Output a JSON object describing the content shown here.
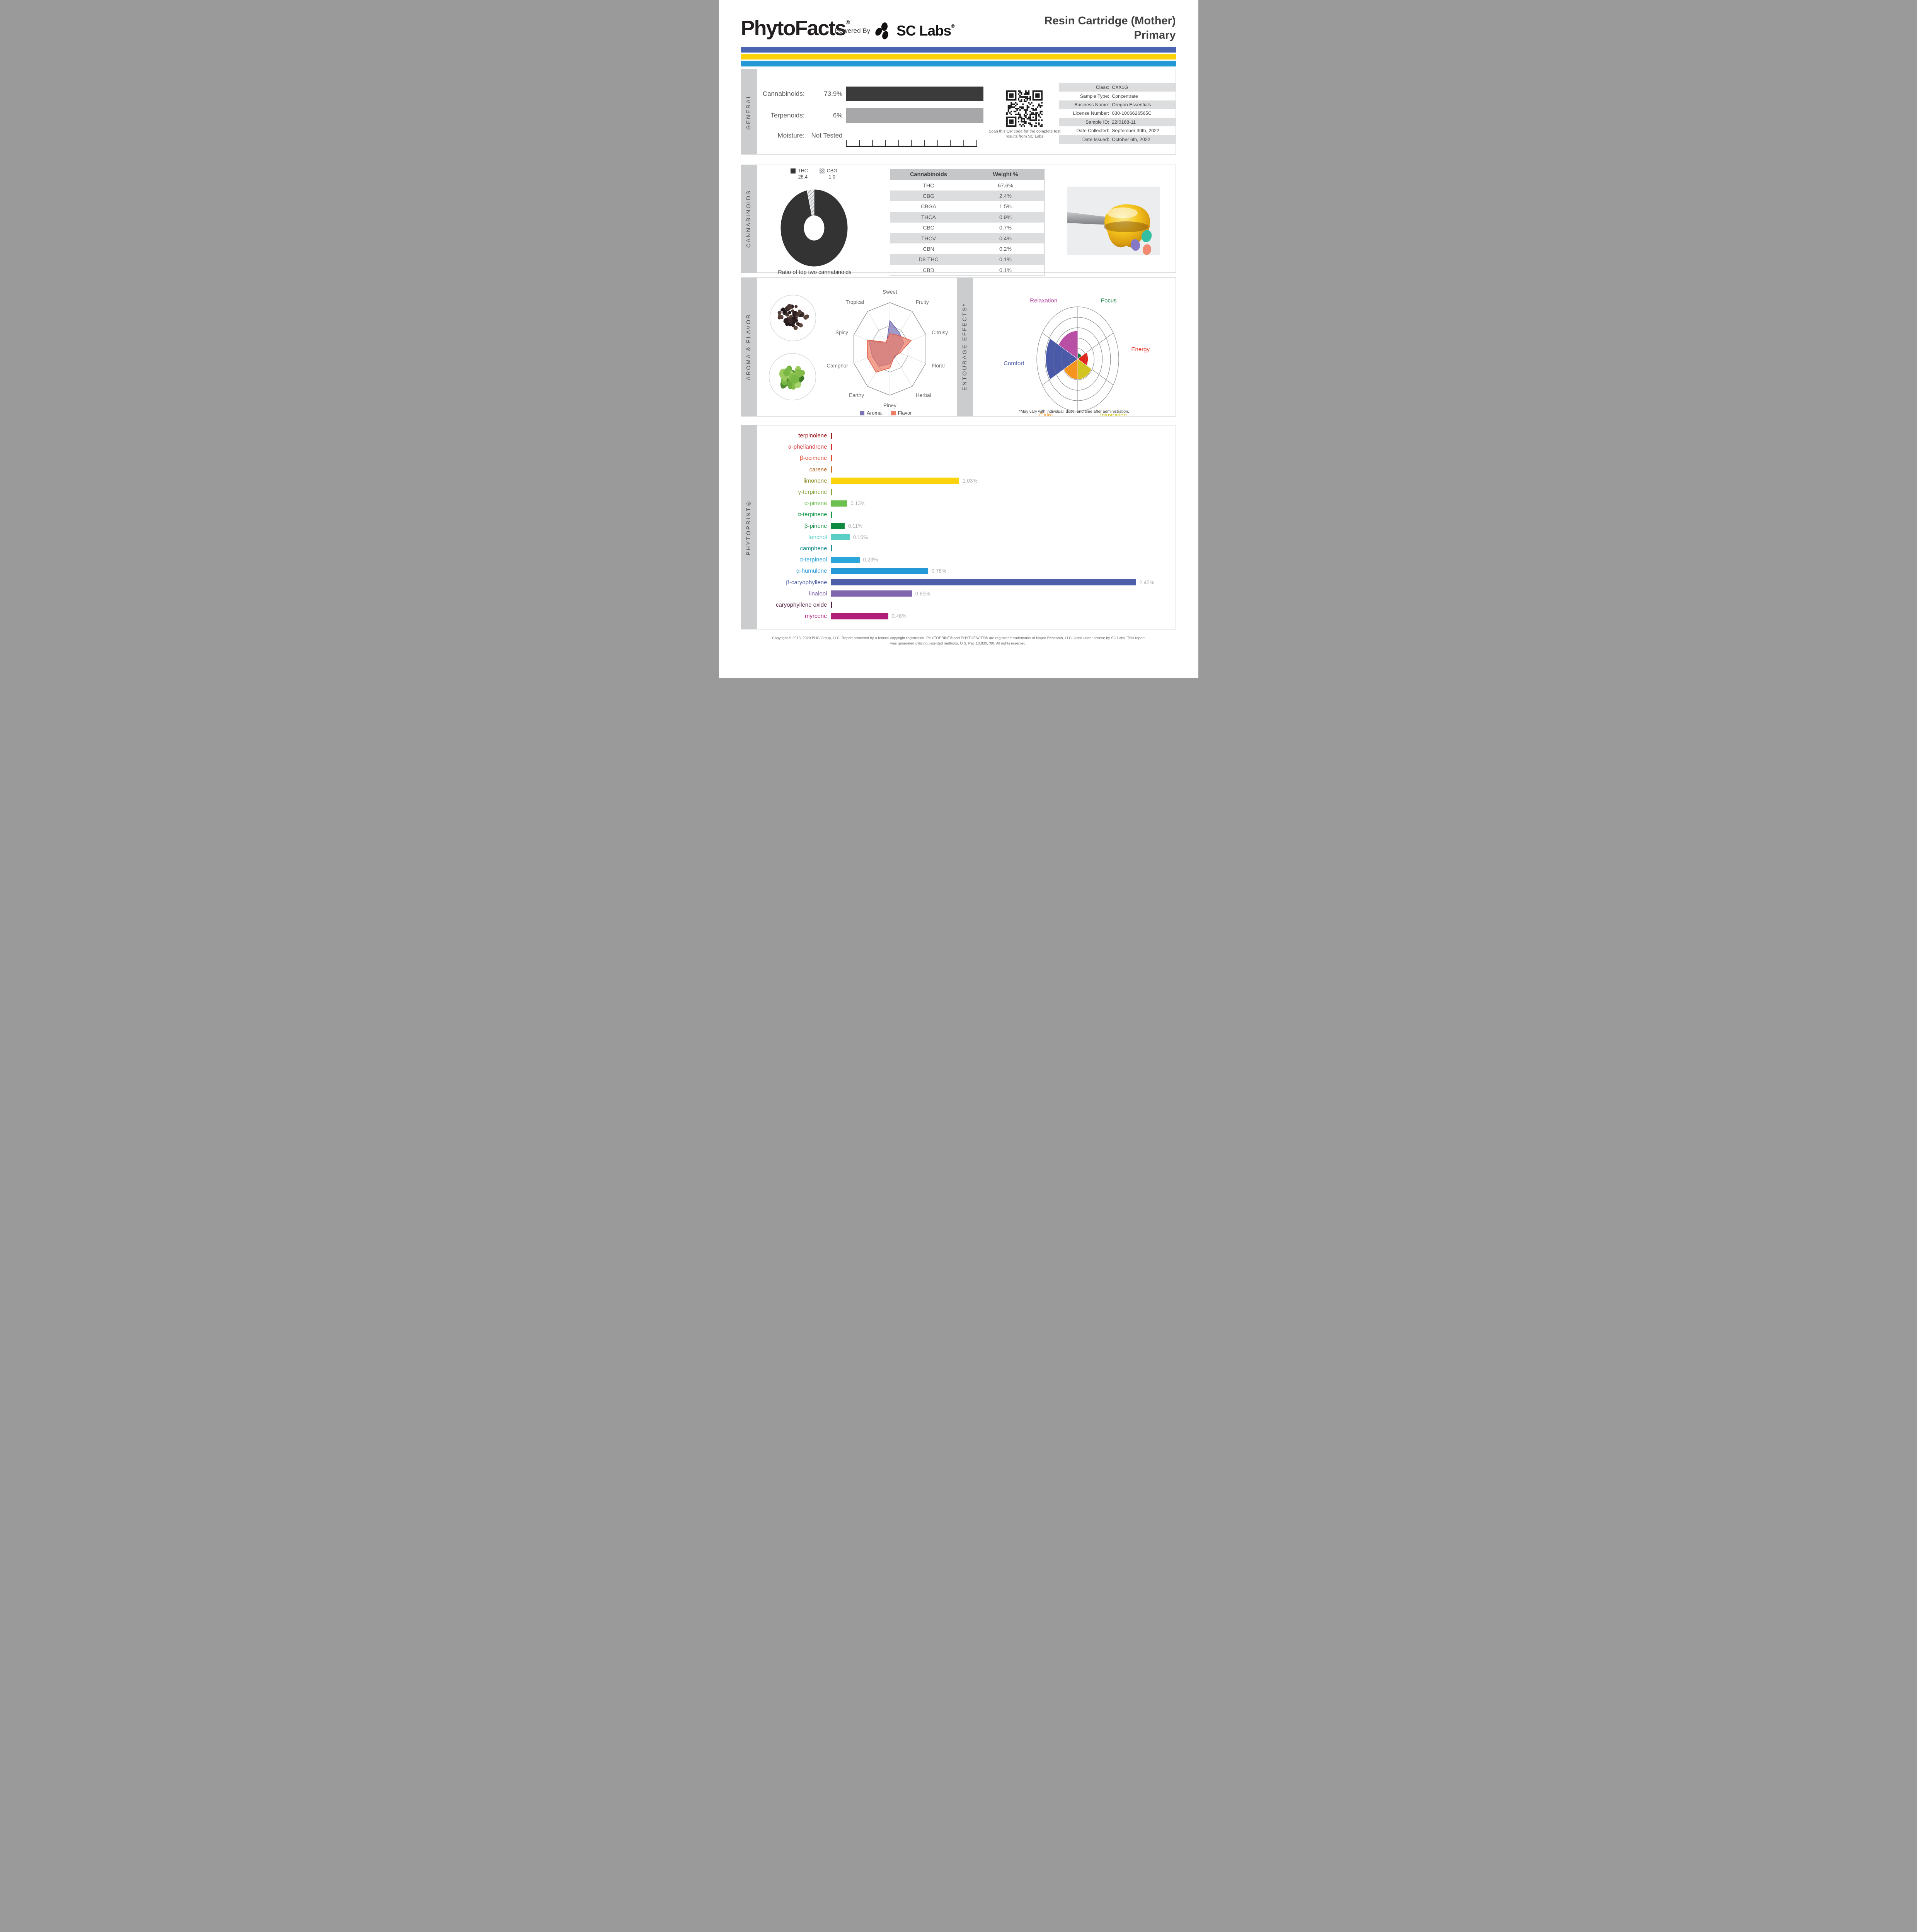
{
  "header": {
    "brand": "PhytoFacts",
    "brand_reg": "®",
    "powered_by": "Powered By",
    "lab": "SC Labs",
    "lab_reg": "®",
    "title_line1": "Resin Cartridge (Mother)",
    "title_line2": "Primary"
  },
  "colors": {
    "divider_blue": "#4a66b0",
    "divider_yellow": "#fcd20a",
    "divider_cyan": "#2499d4",
    "sidebar_gray": "#cbcccd",
    "table_stripe": "#dcddde",
    "table_header": "#c6c7c9",
    "value_gray": "#a7a9ac",
    "cannabinoids_bar": "#3b3b3c",
    "terpenoids_bar": "#a7a7a9"
  },
  "general": {
    "section_label": "GENERAL",
    "cannabinoids_label": "Cannabinoids:",
    "cannabinoids_value": "73.9%",
    "terpenoids_label": "Terpenoids:",
    "terpenoids_value": "6%",
    "moisture_label": "Moisture:",
    "moisture_value": "Not Tested",
    "qr_caption": "Scan this QR code for the complete test results from SC Labs",
    "info": [
      {
        "label": "Class:",
        "value": "CXX1G"
      },
      {
        "label": "Sample Type:",
        "value": "Concentrate"
      },
      {
        "label": "Business Name:",
        "value": "Oregon Essentials"
      },
      {
        "label": "License Number:",
        "value": "030-1006626565C"
      },
      {
        "label": "Sample ID:",
        "value": "22I0168-11"
      },
      {
        "label": "Date Collected:",
        "value": "September 30th, 2022"
      },
      {
        "label": "Date Issued:",
        "value": "October 6th, 2022"
      }
    ]
  },
  "cannabinoids": {
    "section_label": "CANNABINOIDS",
    "caption": "Ratio of top two cannabinoids",
    "table": {
      "headers": [
        "Cannabinoids",
        "Weight %"
      ],
      "rows": [
        [
          "THC",
          "67.6%"
        ],
        [
          "CBG",
          "2.4%"
        ],
        [
          "CBGA",
          "1.5%"
        ],
        [
          "THCA",
          "0.9%"
        ],
        [
          "CBC",
          "0.7%"
        ],
        [
          "THCV",
          "0.4%"
        ],
        [
          "CBN",
          "0.2%"
        ],
        [
          "D8-THC",
          "0.1%"
        ],
        [
          "CBD",
          "0.1%"
        ]
      ]
    }
  },
  "aroma": {
    "section_label": "AROMA & FLAVOR"
  },
  "entourage": {
    "section_label": "ENTOURAGE EFFECTS*",
    "note": "*May vary with individual, dose, and time after administration."
  },
  "phytoprint": {
    "section_label": "PHYTOPRINT®"
  },
  "footer": {
    "line1": "Copyright © 2013, 2020 BHC Group, LLC. Report protected by a federal copyright registration. PHYTOPRINT® and PHYTOFACTS® are registered trademarks of Napro Research, LLC. Used under license by SC Labs. This report",
    "line2": "was generated utilizing patented methods. U.S. Pat. 10,830,780. All rights reserved."
  },
  "chart_data": [
    {
      "id": "cannabinoid_ratio_donut",
      "type": "pie",
      "title": "Ratio of top two cannabinoids",
      "slices": [
        {
          "label": "THC",
          "value": 28.4,
          "color": "#333333"
        },
        {
          "label": "CBG",
          "value": 1.0,
          "color": "hatch"
        }
      ],
      "legend_position": "top"
    },
    {
      "id": "aroma_flavor_radar",
      "type": "radar",
      "categories": [
        "Sweet",
        "Fruity",
        "Citrusy",
        "Floral",
        "Herbal",
        "Piney",
        "Earthy",
        "Camphor",
        "Spicy",
        "Tropical"
      ],
      "scale_max": 1.0,
      "rings": [
        0.5,
        1.0
      ],
      "series": [
        {
          "name": "Aroma",
          "color": "#7b75b5",
          "stroke": "#6a64ab",
          "values": [
            0.61,
            0.43,
            0.39,
            0.24,
            0.22,
            0.32,
            0.47,
            0.49,
            0.59,
            0.15
          ]
        },
        {
          "name": "Flavor",
          "color": "#ee7d66",
          "stroke": "#e25a43",
          "values": [
            0.33,
            0.36,
            0.59,
            0.28,
            0.2,
            0.41,
            0.62,
            0.62,
            0.62,
            0.18
          ]
        }
      ]
    },
    {
      "id": "entourage_effects_polar",
      "type": "polar-area",
      "categories": [
        "Focus",
        "Energy",
        "Inspiration",
        "Calm",
        "Comfort",
        "Relaxation"
      ],
      "values": [
        0.11,
        0.25,
        0.39,
        0.39,
        0.78,
        0.54
      ],
      "colors": [
        "#108040",
        "#e1251b",
        "#d3c422",
        "#f7941e",
        "#4a5aa8",
        "#b94fa5"
      ],
      "rings": 5,
      "note": "*May vary with individual, dose, and time after administration."
    },
    {
      "id": "phytoprint_terpenes",
      "type": "bar",
      "unit": "%",
      "xlim": [
        0,
        2.6
      ],
      "items": [
        {
          "label": "terpinolene",
          "value": 0,
          "display": "",
          "color": "#9a1c20"
        },
        {
          "label": "α-phellandrene",
          "value": 0,
          "display": "",
          "color": "#d7282e"
        },
        {
          "label": "β-ocimene",
          "value": 0,
          "display": "",
          "color": "#e0492b"
        },
        {
          "label": "carene",
          "value": 0,
          "display": "",
          "color": "#bd6b28"
        },
        {
          "label": "limonene",
          "value": 1.03,
          "display": "1.03%",
          "color": "#8e8d26",
          "bar_color": "#fcd40e"
        },
        {
          "label": "γ-terpinene",
          "value": 0,
          "display": "",
          "color": "#85a23a"
        },
        {
          "label": "α-pinene",
          "value": 0.13,
          "display": "0.13%",
          "color": "#6cc04e"
        },
        {
          "label": "α-terpinene",
          "value": 0,
          "display": "",
          "color": "#16984c"
        },
        {
          "label": "β-pinene",
          "value": 0.11,
          "display": "0.11%",
          "color": "#0d8a40"
        },
        {
          "label": "fenchol",
          "value": 0.15,
          "display": "0.15%",
          "color": "#59cec7"
        },
        {
          "label": "camphene",
          "value": 0,
          "display": "",
          "color": "#1d8f90"
        },
        {
          "label": "α-terpineol",
          "value": 0.23,
          "display": "0.23%",
          "color": "#2ba6dd"
        },
        {
          "label": "α-humulene",
          "value": 0.78,
          "display": "0.78%",
          "color": "#2598d5"
        },
        {
          "label": "β-caryophyllene",
          "value": 2.45,
          "display": "2.45%",
          "color": "#4c5fa8"
        },
        {
          "label": "linalool",
          "value": 0.65,
          "display": "0.65%",
          "color": "#7f66ad"
        },
        {
          "label": "caryophyllene oxide",
          "value": 0,
          "display": "",
          "color": "#4f1d3f"
        },
        {
          "label": "myrcene",
          "value": 0.46,
          "display": "0.46%",
          "color": "#b21f78"
        }
      ]
    }
  ]
}
